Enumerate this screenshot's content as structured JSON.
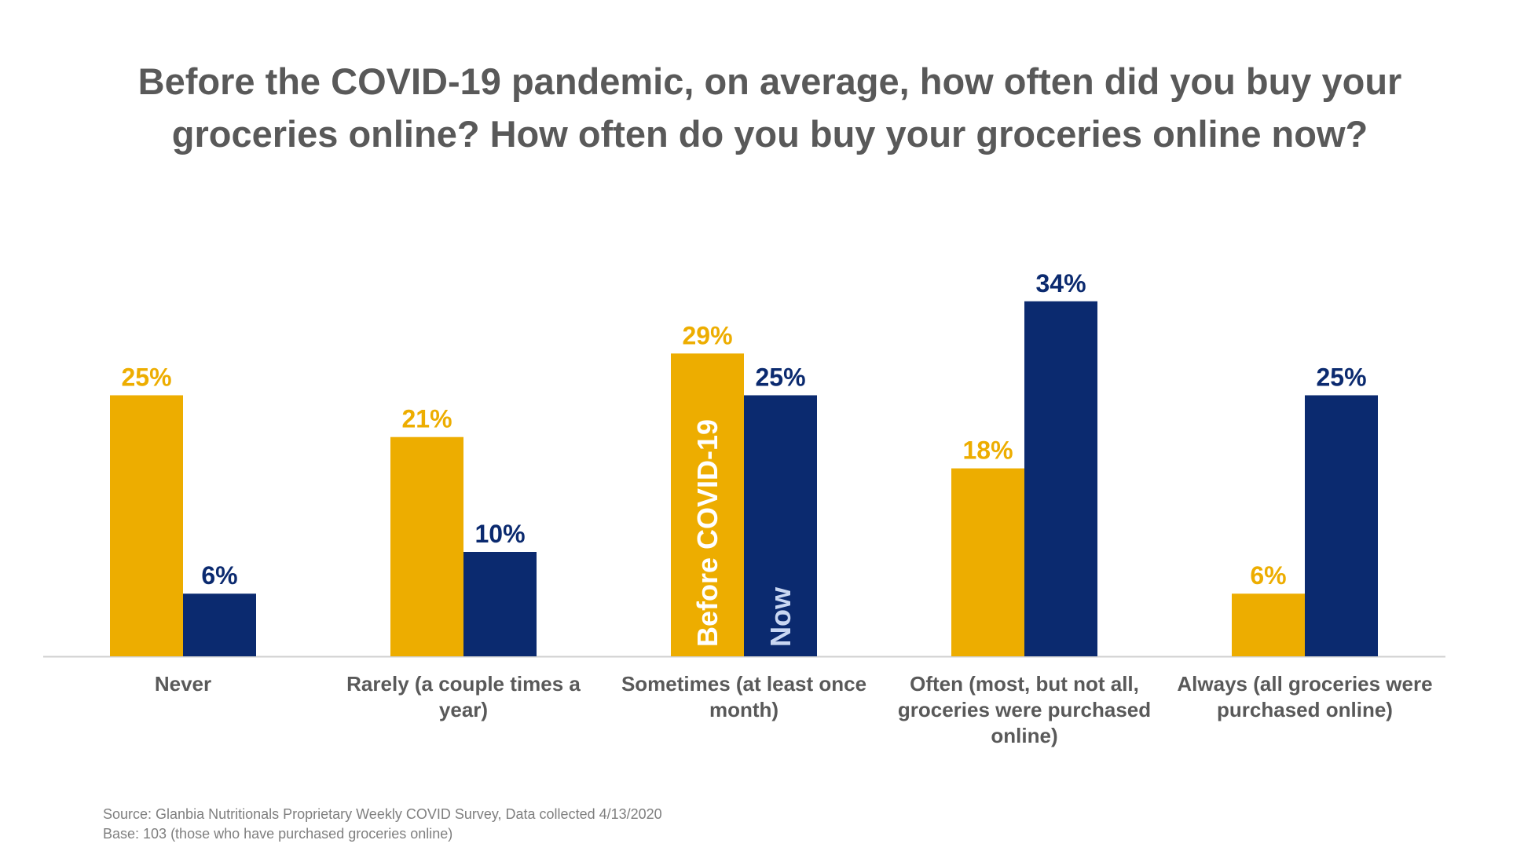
{
  "title": "Before the COVID-19 pandemic, on average, how often did you buy your groceries online? How often do you buy your groceries online now?",
  "chart_data": {
    "type": "bar",
    "categories": [
      [
        "Never"
      ],
      [
        "Rarely (a couple times a",
        "year)"
      ],
      [
        "Sometimes (at least once",
        "month)"
      ],
      [
        "Often (most, but not all,",
        "groceries were purchased",
        "online)"
      ],
      [
        "Always (all groceries were",
        "purchased online)"
      ]
    ],
    "series": [
      {
        "name": "Before COVID-19",
        "color": "#EDAD00",
        "values": [
          25,
          21,
          29,
          18,
          6
        ],
        "labels": [
          "25%",
          "21%",
          "29%",
          "18%",
          "6%"
        ]
      },
      {
        "name": "Now",
        "color": "#0B2A6F",
        "values": [
          6,
          10,
          25,
          34,
          25
        ],
        "labels": [
          "6%",
          "10%",
          "25%",
          "34%",
          "25%"
        ]
      }
    ],
    "ylim": [
      0,
      34
    ],
    "legend": "inside bars (Sometimes category)",
    "grid": false
  },
  "footer": {
    "source": "Source: Glanbia Nutritionals Proprietary Weekly COVID Survey, Data collected 4/13/2020",
    "base": "Base: 103 (those who have purchased groceries online)"
  }
}
